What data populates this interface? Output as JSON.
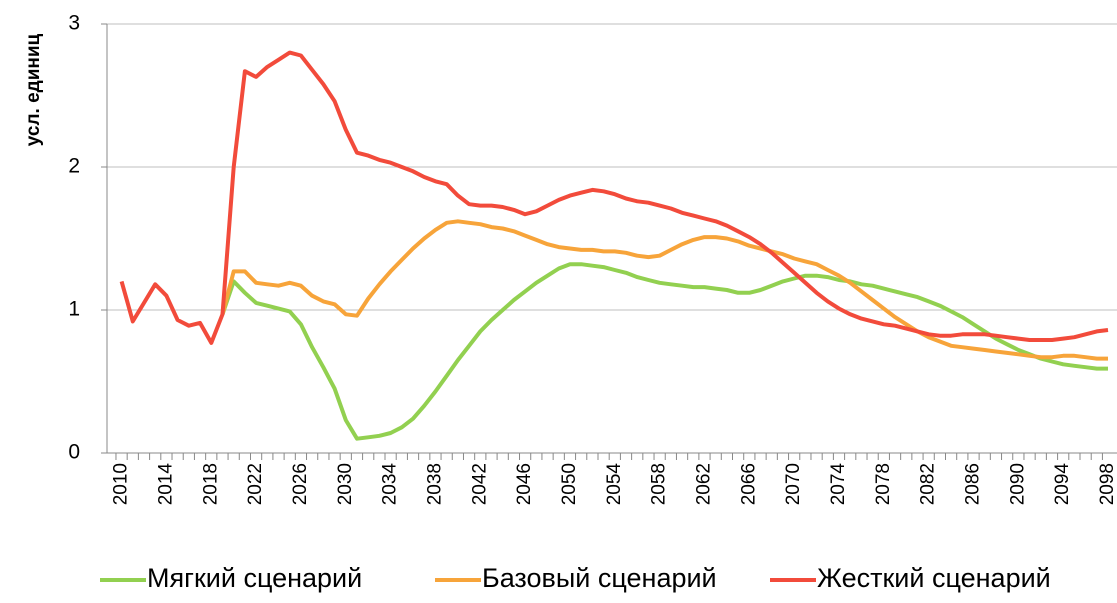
{
  "chart_data": {
    "type": "line",
    "y_label": "усл. единиц",
    "x": [
      2010,
      2011,
      2012,
      2013,
      2014,
      2015,
      2016,
      2017,
      2018,
      2019,
      2020,
      2021,
      2022,
      2023,
      2024,
      2025,
      2026,
      2027,
      2028,
      2029,
      2030,
      2031,
      2032,
      2033,
      2034,
      2035,
      2036,
      2037,
      2038,
      2039,
      2040,
      2041,
      2042,
      2043,
      2044,
      2045,
      2046,
      2047,
      2048,
      2049,
      2050,
      2051,
      2052,
      2053,
      2054,
      2055,
      2056,
      2057,
      2058,
      2059,
      2060,
      2061,
      2062,
      2063,
      2064,
      2065,
      2066,
      2067,
      2068,
      2069,
      2070,
      2071,
      2072,
      2073,
      2074,
      2075,
      2076,
      2077,
      2078,
      2079,
      2080,
      2081,
      2082,
      2083,
      2084,
      2085,
      2086,
      2087,
      2088,
      2089,
      2090,
      2091,
      2092,
      2093,
      2094,
      2095,
      2096,
      2097,
      2098
    ],
    "xlim": [
      2008.7,
      2098.8
    ],
    "xticks": [
      2010,
      2014,
      2018,
      2022,
      2026,
      2030,
      2034,
      2038,
      2042,
      2046,
      2050,
      2054,
      2058,
      2062,
      2066,
      2070,
      2074,
      2078,
      2082,
      2086,
      2090,
      2094,
      2098
    ],
    "ylim": [
      0,
      3
    ],
    "yticks": [
      0,
      1,
      2,
      3
    ],
    "grid": true,
    "legend": "bottom",
    "series": [
      {
        "name": "Мягкий сценарий",
        "color": "#92d050",
        "values": [
          null,
          null,
          null,
          null,
          null,
          null,
          null,
          null,
          null,
          0.97,
          1.2,
          1.12,
          1.05,
          1.03,
          1.01,
          0.99,
          0.9,
          0.74,
          0.6,
          0.45,
          0.23,
          0.1,
          0.11,
          0.12,
          0.14,
          0.18,
          0.24,
          0.33,
          0.43,
          0.54,
          0.65,
          0.75,
          0.85,
          0.93,
          1.0,
          1.07,
          1.13,
          1.19,
          1.24,
          1.29,
          1.32,
          1.32,
          1.31,
          1.3,
          1.28,
          1.26,
          1.23,
          1.21,
          1.19,
          1.18,
          1.17,
          1.16,
          1.16,
          1.15,
          1.14,
          1.12,
          1.12,
          1.14,
          1.17,
          1.2,
          1.22,
          1.24,
          1.24,
          1.23,
          1.21,
          1.2,
          1.18,
          1.17,
          1.15,
          1.13,
          1.11,
          1.09,
          1.06,
          1.03,
          0.99,
          0.95,
          0.9,
          0.85,
          0.8,
          0.76,
          0.72,
          0.69,
          0.66,
          0.64,
          0.62,
          0.61,
          0.6,
          0.59,
          0.59
        ]
      },
      {
        "name": "Базовый сценарий",
        "color": "#f7a43a",
        "values": [
          null,
          null,
          null,
          null,
          null,
          null,
          null,
          null,
          null,
          0.97,
          1.27,
          1.27,
          1.19,
          1.18,
          1.17,
          1.19,
          1.17,
          1.1,
          1.06,
          1.04,
          0.97,
          0.96,
          1.08,
          1.18,
          1.27,
          1.35,
          1.43,
          1.5,
          1.56,
          1.61,
          1.62,
          1.61,
          1.6,
          1.58,
          1.57,
          1.55,
          1.52,
          1.49,
          1.46,
          1.44,
          1.43,
          1.42,
          1.42,
          1.41,
          1.41,
          1.4,
          1.38,
          1.37,
          1.38,
          1.42,
          1.46,
          1.49,
          1.51,
          1.51,
          1.5,
          1.48,
          1.45,
          1.43,
          1.41,
          1.39,
          1.36,
          1.34,
          1.32,
          1.28,
          1.24,
          1.19,
          1.13,
          1.07,
          1.01,
          0.95,
          0.9,
          0.85,
          0.81,
          0.78,
          0.75,
          0.74,
          0.73,
          0.72,
          0.71,
          0.7,
          0.69,
          0.68,
          0.67,
          0.67,
          0.68,
          0.68,
          0.67,
          0.66,
          0.66
        ]
      },
      {
        "name": "Жесткий сценарий",
        "color": "#f24b3b",
        "values": [
          1.2,
          0.92,
          1.05,
          1.18,
          1.1,
          0.93,
          0.89,
          0.91,
          0.77,
          0.97,
          2.0,
          2.67,
          2.63,
          2.7,
          2.75,
          2.8,
          2.78,
          2.68,
          2.58,
          2.46,
          2.26,
          2.1,
          2.08,
          2.05,
          2.03,
          2.0,
          1.97,
          1.93,
          1.9,
          1.88,
          1.8,
          1.74,
          1.73,
          1.73,
          1.72,
          1.7,
          1.67,
          1.69,
          1.73,
          1.77,
          1.8,
          1.82,
          1.84,
          1.83,
          1.81,
          1.78,
          1.76,
          1.75,
          1.73,
          1.71,
          1.68,
          1.66,
          1.64,
          1.62,
          1.59,
          1.55,
          1.51,
          1.46,
          1.4,
          1.33,
          1.26,
          1.19,
          1.12,
          1.06,
          1.01,
          0.97,
          0.94,
          0.92,
          0.9,
          0.89,
          0.87,
          0.85,
          0.83,
          0.82,
          0.82,
          0.83,
          0.83,
          0.83,
          0.82,
          0.81,
          0.8,
          0.79,
          0.79,
          0.79,
          0.8,
          0.81,
          0.83,
          0.85,
          0.86
        ]
      }
    ]
  }
}
